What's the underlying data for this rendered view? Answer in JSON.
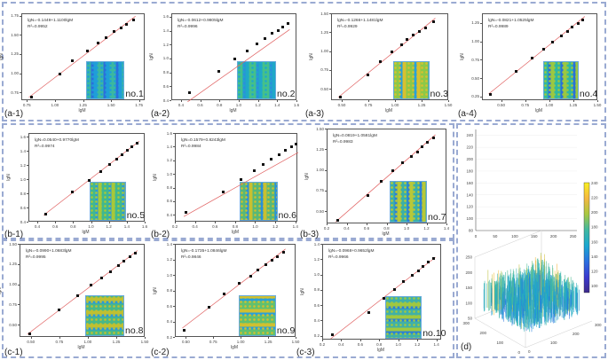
{
  "chart_data": [
    {
      "type": "scatter",
      "panel_label": "(a-1)",
      "inset_label": "no.1",
      "equation": "lgN=-0.1449+1.1100lgM",
      "r2": "R²=0.9952",
      "fit": {
        "intercept": -0.1449,
        "slope": 1.11
      },
      "xlabel": "lgM",
      "ylabel": "lgN",
      "xlim": [
        0.7,
        1.8
      ],
      "ylim": [
        0.65,
        1.78
      ],
      "xticks": [
        "0.75",
        "1.00",
        "1.25",
        "1.50",
        "1.75"
      ],
      "yticks": [
        "0.75",
        "1.00",
        "1.25",
        "1.50",
        "1.75"
      ],
      "x": [
        0.78,
        1.04,
        1.15,
        1.28,
        1.38,
        1.45,
        1.52,
        1.58,
        1.63,
        1.69
      ],
      "y": [
        0.7,
        1.0,
        1.17,
        1.3,
        1.4,
        1.48,
        1.55,
        1.6,
        1.65,
        1.7
      ],
      "inset_colors": [
        "#1f9ed8",
        "#3bb8a0",
        "#2a6fdc"
      ]
    },
    {
      "type": "scatter",
      "panel_label": "(a-2)",
      "inset_label": "no.2",
      "equation": "lgN=-0.0612+0.9805lgM",
      "r2": "R²=0.9996",
      "fit": {
        "intercept": -0.0612,
        "slope": 0.9805
      },
      "xlabel": "lgM",
      "ylabel": "lgN",
      "xlim": [
        0.3,
        1.6
      ],
      "ylim": [
        0.4,
        1.65
      ],
      "xticks": [
        "0.4",
        "0.6",
        "0.8",
        "1.0",
        "1.2",
        "1.4",
        "1.6"
      ],
      "yticks": [
        "0.4",
        "0.6",
        "0.8",
        "1.0",
        "1.2",
        "1.4",
        "1.6"
      ],
      "x": [
        0.48,
        0.78,
        0.95,
        1.08,
        1.18,
        1.26,
        1.34,
        1.4,
        1.45,
        1.5
      ],
      "y": [
        0.52,
        0.83,
        1.0,
        1.12,
        1.22,
        1.3,
        1.37,
        1.42,
        1.47,
        1.52
      ],
      "inset_colors": [
        "#1fa8c8",
        "#45c08a",
        "#2a8fdc"
      ]
    },
    {
      "type": "scatter",
      "panel_label": "(a-3)",
      "inset_label": "no.3",
      "equation": "lgN=-0.1266+1.1481lgM",
      "r2": "R²=0.9929",
      "fit": {
        "intercept": -0.1266,
        "slope": 1.1481
      },
      "xlabel": "lgM",
      "ylabel": "lgN",
      "xlim": [
        0.4,
        1.5
      ],
      "ylim": [
        0.35,
        1.5
      ],
      "xticks": [
        "0.50",
        "0.75",
        "1.00",
        "1.25",
        "1.50"
      ],
      "yticks": [
        "0.50",
        "0.75",
        "1.00",
        "1.25",
        "1.50"
      ],
      "x": [
        0.48,
        0.74,
        0.85,
        0.96,
        1.05,
        1.1,
        1.16,
        1.22,
        1.28,
        1.35
      ],
      "y": [
        0.4,
        0.7,
        0.87,
        1.0,
        1.1,
        1.17,
        1.22,
        1.27,
        1.32,
        1.4
      ],
      "inset_colors": [
        "#d8c030",
        "#8cc848",
        "#2aa0d8"
      ]
    },
    {
      "type": "scatter",
      "panel_label": "(a-4)",
      "inset_label": "no.4",
      "equation": "lgN=-0.0821+1.0525lgM",
      "r2": "R²=0.9989",
      "fit": {
        "intercept": -0.0821,
        "slope": 1.0525
      },
      "xlabel": "lgM",
      "ylabel": "lgN",
      "xlim": [
        0.3,
        1.5
      ],
      "ylim": [
        0.2,
        1.38
      ],
      "xticks": [
        "0.50",
        "0.75",
        "1.00",
        "1.25",
        "1.50"
      ],
      "yticks": [
        "0.25",
        "0.50",
        "0.75",
        "1.00",
        "1.25"
      ],
      "x": [
        0.38,
        0.65,
        0.81,
        0.93,
        1.02,
        1.12,
        1.18,
        1.23,
        1.29,
        1.34
      ],
      "y": [
        0.29,
        0.6,
        0.78,
        0.9,
        1.0,
        1.08,
        1.14,
        1.2,
        1.25,
        1.3
      ],
      "inset_colors": [
        "#9cc840",
        "#30b8a0",
        "#2a70d8"
      ]
    },
    {
      "type": "scatter",
      "panel_label": "(b-1)",
      "inset_label": "no.5",
      "equation": "lgN=0.0540+0.9770lgM",
      "r2": "R²=0.9974",
      "fit": {
        "intercept": 0.054,
        "slope": 0.977
      },
      "xlabel": "lgM",
      "ylabel": "lgN",
      "xlim": [
        0.3,
        1.6
      ],
      "ylim": [
        0.4,
        1.65
      ],
      "xticks": [
        "0.4",
        "0.6",
        "0.8",
        "1.0",
        "1.2",
        "1.4",
        "1.6"
      ],
      "yticks": [
        "0.4",
        "0.6",
        "0.8",
        "1.0",
        "1.2",
        "1.4",
        "1.6"
      ],
      "x": [
        0.48,
        0.78,
        0.97,
        1.1,
        1.2,
        1.28,
        1.34,
        1.4,
        1.45,
        1.51
      ],
      "y": [
        0.52,
        0.83,
        1.0,
        1.12,
        1.22,
        1.3,
        1.36,
        1.42,
        1.47,
        1.52
      ],
      "inset_colors": [
        "#a8c838",
        "#40b890",
        "#2a9ad8"
      ]
    },
    {
      "type": "scatter",
      "panel_label": "(b-2)",
      "inset_label": "no.6",
      "equation": "lgN=0.1579+0.8243lgM",
      "r2": "R²=0.9984",
      "fit": {
        "intercept": 0.1579,
        "slope": 0.8243
      },
      "xlabel": "lgM",
      "ylabel": "lgN",
      "xlim": [
        0.2,
        1.42
      ],
      "ylim": [
        0.3,
        1.6
      ],
      "xticks": [
        "0.2",
        "0.4",
        "0.6",
        "0.8",
        "1.0",
        "1.2",
        "1.4"
      ],
      "yticks": [
        "0.4",
        "0.6",
        "0.8",
        "1.0",
        "1.2",
        "1.4",
        "1.6"
      ],
      "x": [
        0.3,
        0.67,
        0.85,
        0.98,
        1.07,
        1.15,
        1.23,
        1.29,
        1.35,
        1.4
      ],
      "y": [
        0.45,
        0.75,
        0.93,
        1.06,
        1.15,
        1.23,
        1.3,
        1.36,
        1.41,
        1.45
      ],
      "inset_colors": [
        "#c8c030",
        "#58b878",
        "#2a90d8"
      ]
    },
    {
      "type": "scatter",
      "panel_label": "(b-3)",
      "inset_label": "no.7",
      "equation": "lgN=0.0819+1.0581lgM",
      "r2": "R²=0.9983",
      "fit": {
        "intercept": 0.0819,
        "slope": 1.0581
      },
      "xlabel": "lgM",
      "ylabel": "lgN",
      "xlim": [
        0.2,
        1.4
      ],
      "ylim": [
        0.35,
        1.5
      ],
      "xticks": [
        "0.2",
        "0.4",
        "0.6",
        "0.8",
        "1.0",
        "1.2",
        "1.4"
      ],
      "yticks": [
        "0.50",
        "0.75",
        "1.00",
        "1.25",
        "1.50"
      ],
      "x": [
        0.3,
        0.6,
        0.74,
        0.85,
        0.95,
        1.04,
        1.1,
        1.15,
        1.2,
        1.26
      ],
      "y": [
        0.4,
        0.7,
        0.87,
        1.0,
        1.1,
        1.17,
        1.23,
        1.29,
        1.34,
        1.4
      ],
      "inset_colors": [
        "#b8c838",
        "#3ab0a8",
        "#2a80d8"
      ]
    },
    {
      "type": "scatter",
      "panel_label": "(c-1)",
      "inset_label": "no.8",
      "equation": "lgN=-0.0990+1.0683lgM",
      "r2": "R²=0.9995",
      "fit": {
        "intercept": -0.099,
        "slope": 1.0683
      },
      "xlabel": "lgM",
      "ylabel": "lgN",
      "xlim": [
        0.4,
        1.5
      ],
      "ylim": [
        0.35,
        1.5
      ],
      "xticks": [
        "0.50",
        "0.75",
        "1.00",
        "1.25",
        "1.50"
      ],
      "yticks": [
        "0.50",
        "0.75",
        "1.00",
        "1.25",
        "1.50"
      ],
      "x": [
        0.48,
        0.74,
        0.9,
        1.02,
        1.11,
        1.19,
        1.26,
        1.31,
        1.36,
        1.41
      ],
      "y": [
        0.4,
        0.7,
        0.87,
        1.0,
        1.09,
        1.17,
        1.24,
        1.3,
        1.35,
        1.4
      ],
      "inset_colors": [
        "#c0c030",
        "#48b888",
        "#2a9ad8"
      ]
    },
    {
      "type": "scatter",
      "panel_label": "(c-2)",
      "inset_label": "no.9",
      "equation": "lgN=-0.1735+1.0846lgM",
      "r2": "R²=0.9846",
      "fit": {
        "intercept": -0.1735,
        "slope": 1.0846
      },
      "xlabel": "lgM",
      "ylabel": "lgN",
      "xlim": [
        0.4,
        1.5
      ],
      "ylim": [
        0.2,
        1.4
      ],
      "xticks": [
        "0.50",
        "0.75",
        "1.00",
        "1.25",
        "1.50"
      ],
      "yticks": [
        "0.2",
        "0.4",
        "0.6",
        "0.8",
        "1.0",
        "1.2",
        "1.4"
      ],
      "x": [
        0.48,
        0.7,
        0.84,
        0.98,
        1.08,
        1.15,
        1.22,
        1.28,
        1.33,
        1.38
      ],
      "y": [
        0.3,
        0.6,
        0.77,
        0.9,
        1.0,
        1.08,
        1.14,
        1.2,
        1.25,
        1.3
      ],
      "inset_colors": [
        "#d0c030",
        "#60c070",
        "#2aa0d8"
      ]
    },
    {
      "type": "scatter",
      "panel_label": "(c-3)",
      "inset_label": "no.10",
      "equation": "lgN=-0.0968+0.9652lgM",
      "r2": "R²=0.9966",
      "fit": {
        "intercept": -0.0968,
        "slope": 0.9652
      },
      "xlabel": "lgM",
      "ylabel": "lgN",
      "xlim": [
        0.2,
        1.45
      ],
      "ylim": [
        0.15,
        1.4
      ],
      "xticks": [
        "0.2",
        "0.4",
        "0.6",
        "0.8",
        "1.0",
        "1.2",
        "1.4"
      ],
      "yticks": [
        "0.2",
        "0.4",
        "0.6",
        "0.8",
        "1.0",
        "1.2",
        "1.4"
      ],
      "x": [
        0.3,
        0.68,
        0.84,
        0.95,
        1.04,
        1.14,
        1.2,
        1.25,
        1.31,
        1.36
      ],
      "y": [
        0.22,
        0.52,
        0.7,
        0.82,
        0.92,
        1.0,
        1.06,
        1.12,
        1.17,
        1.22
      ],
      "inset_colors": [
        "#a0c840",
        "#40b0a8",
        "#2a80d8"
      ]
    }
  ],
  "panel_d": {
    "label": "(d)",
    "side_view": {
      "yticks": [
        "80",
        "100",
        "120",
        "140",
        "160",
        "180",
        "200",
        "220",
        "240"
      ],
      "xticks": [
        "0",
        "50",
        "100",
        "150",
        "200",
        "250"
      ],
      "ylim": [
        80,
        250
      ],
      "xlim": [
        0,
        260
      ]
    },
    "colorbar": {
      "ticks": [
        "240",
        "220",
        "200",
        "180",
        "160",
        "140",
        "120",
        "100"
      ],
      "colors": [
        "#f9f020",
        "#f5b840",
        "#a8c840",
        "#40b8a0",
        "#1aa8d0",
        "#2a70e0",
        "#3a3ad0",
        "#3e2a8a"
      ]
    },
    "surface": {
      "zticks": [
        "250",
        "200",
        "150",
        "100",
        "50"
      ],
      "yticks": [
        "300",
        "200",
        "100",
        "0"
      ],
      "xticks": [
        "0",
        "100",
        "200",
        "300"
      ]
    }
  },
  "colors": {
    "border": "#9aaad2",
    "fit_line": "#e06060",
    "point": "#111111"
  }
}
